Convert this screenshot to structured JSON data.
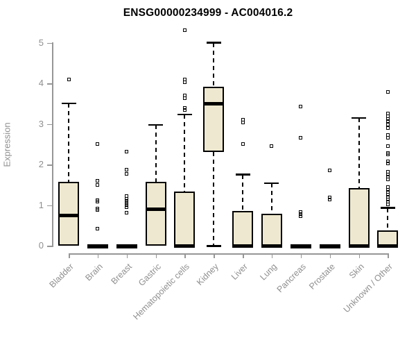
{
  "title": "ENSG00000234999 - AC004016.2",
  "y_axis": {
    "label": "Expression",
    "ticks": [
      "0",
      "1",
      "2",
      "3",
      "4",
      "5"
    ]
  },
  "x_axis": {
    "categories": [
      "Bladder",
      "Brain",
      "Breast",
      "Gastric",
      "Hematopoietic cells",
      "Kidney",
      "Liver",
      "Lung",
      "Pancreas",
      "Prostate",
      "Skin",
      "Unknown / Other"
    ]
  },
  "colors": {
    "box_fill": "#EDE8CF",
    "box_border": "#000000",
    "axis": "#969696",
    "tick_label": "#8F8F8F",
    "title": "#000000",
    "background": "#FFFFFF"
  },
  "chart_data": {
    "type": "boxplot",
    "title": "ENSG00000234999 - AC004016.2",
    "xlabel": "",
    "ylabel": "Expression",
    "ylim": [
      0,
      5.35
    ],
    "yticks": [
      0,
      1,
      2,
      3,
      4,
      5
    ],
    "grid": false,
    "legend": "none",
    "categories": [
      "Bladder",
      "Brain",
      "Breast",
      "Gastric",
      "Hematopoietic cells",
      "Kidney",
      "Liver",
      "Lung",
      "Pancreas",
      "Prostate",
      "Skin",
      "Unknown / Other"
    ],
    "series": [
      {
        "name": "Bladder",
        "whisker_low": 0,
        "q1": 0,
        "median": 0.75,
        "q3": 1.57,
        "whisker_high": 3.5,
        "outliers": [
          4.1
        ]
      },
      {
        "name": "Brain",
        "whisker_low": 0,
        "q1": 0,
        "median": 0,
        "q3": 0,
        "whisker_high": 0,
        "outliers": [
          2.5,
          1.6,
          1.5,
          1.12,
          1.08,
          0.92,
          0.88,
          0.42
        ]
      },
      {
        "name": "Breast",
        "whisker_low": 0,
        "q1": 0,
        "median": 0,
        "q3": 0,
        "whisker_high": 0,
        "outliers": [
          2.32,
          1.87,
          1.77,
          1.22,
          1.16,
          1.1,
          1.05,
          1.0,
          0.95,
          0.82
        ]
      },
      {
        "name": "Gastric",
        "whisker_low": 0,
        "q1": 0,
        "median": 0.89,
        "q3": 1.57,
        "whisker_high": 2.97,
        "outliers": []
      },
      {
        "name": "Hematopoietic cells",
        "whisker_low": 0,
        "q1": 0,
        "median": 0,
        "q3": 1.33,
        "whisker_high": 3.23,
        "outliers": [
          5.3,
          4.1,
          4.02,
          3.7,
          3.64,
          3.4,
          3.34
        ]
      },
      {
        "name": "Kidney",
        "whisker_low": 0,
        "q1": 2.3,
        "median": 3.5,
        "q3": 3.92,
        "whisker_high": 5.0,
        "outliers": []
      },
      {
        "name": "Liver",
        "whisker_low": 0,
        "q1": 0,
        "median": 0,
        "q3": 0.86,
        "whisker_high": 1.75,
        "outliers": [
          3.1,
          3.04,
          2.5
        ]
      },
      {
        "name": "Lung",
        "whisker_low": 0,
        "q1": 0,
        "median": 0,
        "q3": 0.78,
        "whisker_high": 1.53,
        "outliers": [
          2.46
        ]
      },
      {
        "name": "Pancreas",
        "whisker_low": 0,
        "q1": 0,
        "median": 0,
        "q3": 0,
        "whisker_high": 0,
        "outliers": [
          3.43,
          2.66,
          0.83,
          0.78,
          0.72
        ]
      },
      {
        "name": "Prostate",
        "whisker_low": 0,
        "q1": 0,
        "median": 0,
        "q3": 0,
        "whisker_high": 0,
        "outliers": [
          1.86,
          1.18,
          1.13
        ]
      },
      {
        "name": "Skin",
        "whisker_low": 0,
        "q1": 0,
        "median": 0,
        "q3": 1.42,
        "whisker_high": 3.14,
        "outliers": []
      },
      {
        "name": "Unknown / Other",
        "whisker_low": 0,
        "q1": 0,
        "median": 0,
        "q3": 0.38,
        "whisker_high": 0.93,
        "outliers": [
          3.78,
          3.25,
          3.18,
          3.12,
          3.06,
          2.98,
          2.89,
          2.72,
          2.65,
          2.45,
          2.28,
          2.24,
          2.08,
          2.02,
          1.82,
          1.76,
          1.7,
          1.63,
          1.44,
          1.38,
          1.32,
          1.26,
          1.2,
          1.14,
          1.08,
          1.02
        ]
      }
    ]
  }
}
